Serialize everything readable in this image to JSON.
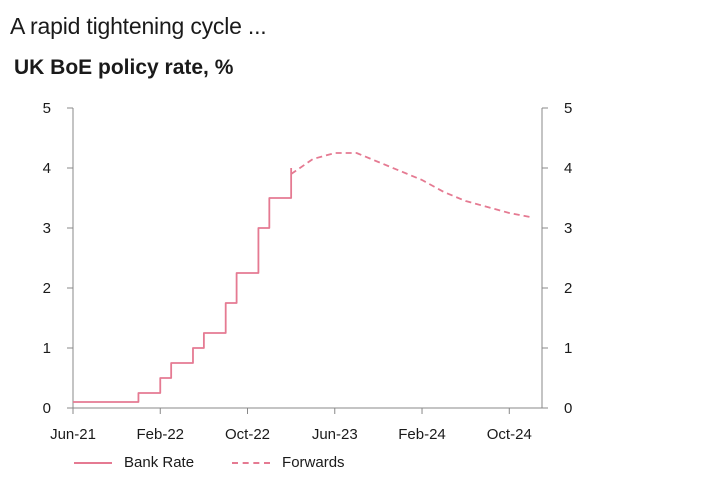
{
  "header": {
    "headline": "A rapid tightening cycle ...",
    "title": "UK BoE policy rate, %"
  },
  "colors": {
    "series": "#e57a92",
    "axis": "#888888"
  },
  "chart_data": {
    "type": "line",
    "title": "UK BoE policy rate, %",
    "xlabel": "",
    "ylabel": "",
    "x_tick_labels": [
      "Jun-21",
      "Feb-22",
      "Oct-22",
      "Jun-23",
      "Feb-24",
      "Oct-24"
    ],
    "y_ticks_left": [
      0,
      1,
      2,
      3,
      4,
      5
    ],
    "y_ticks_right": [
      0,
      1,
      2,
      3,
      4,
      5
    ],
    "ylim": [
      0,
      5
    ],
    "xlim": [
      "2021-06",
      "2025-01"
    ],
    "grid": false,
    "legend_position": "bottom-left",
    "series": [
      {
        "name": "Bank Rate",
        "style": "solid",
        "step": true,
        "points": [
          [
            "2021-06",
            0.1
          ],
          [
            "2021-12",
            0.25
          ],
          [
            "2022-02",
            0.5
          ],
          [
            "2022-03",
            0.75
          ],
          [
            "2022-05",
            1.0
          ],
          [
            "2022-06",
            1.25
          ],
          [
            "2022-08",
            1.75
          ],
          [
            "2022-09",
            2.25
          ],
          [
            "2022-11",
            3.0
          ],
          [
            "2022-12",
            3.5
          ],
          [
            "2023-02",
            4.0
          ]
        ]
      },
      {
        "name": "Forwards",
        "style": "dashed",
        "step": false,
        "points": [
          [
            "2023-02",
            3.9
          ],
          [
            "2023-04",
            4.15
          ],
          [
            "2023-06",
            4.25
          ],
          [
            "2023-08",
            4.25
          ],
          [
            "2023-10",
            4.1
          ],
          [
            "2023-12",
            3.95
          ],
          [
            "2024-02",
            3.8
          ],
          [
            "2024-04",
            3.6
          ],
          [
            "2024-06",
            3.45
          ],
          [
            "2024-08",
            3.35
          ],
          [
            "2024-10",
            3.25
          ],
          [
            "2024-12",
            3.18
          ]
        ]
      }
    ]
  }
}
